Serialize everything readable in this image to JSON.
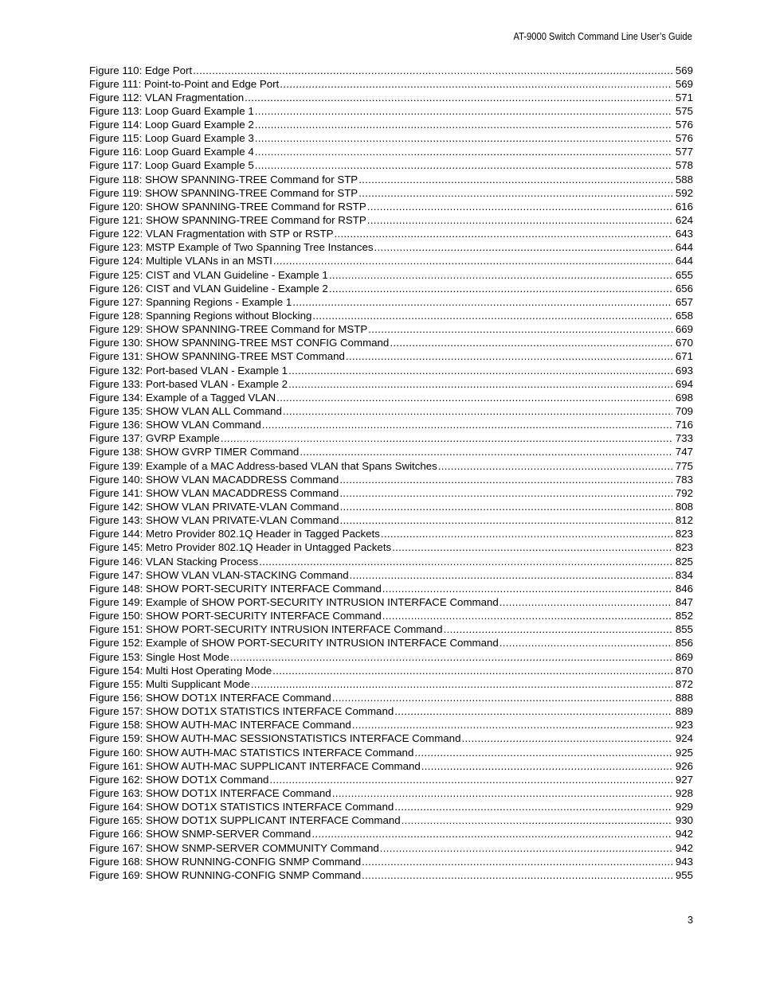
{
  "header": {
    "title": "AT-9000 Switch Command Line User’s Guide"
  },
  "entries": [
    {
      "title": "Figure 110: Edge Port",
      "page": "569"
    },
    {
      "title": "Figure 111: Point-to-Point and Edge Port",
      "page": "569"
    },
    {
      "title": "Figure 112: VLAN Fragmentation",
      "page": "571"
    },
    {
      "title": "Figure 113: Loop Guard Example 1",
      "page": "575"
    },
    {
      "title": "Figure 114: Loop Guard Example 2",
      "page": "576"
    },
    {
      "title": "Figure 115: Loop Guard Example 3",
      "page": "576"
    },
    {
      "title": "Figure 116: Loop Guard Example 4",
      "page": "577"
    },
    {
      "title": "Figure 117: Loop Guard Example 5",
      "page": "578"
    },
    {
      "title": "Figure 118: SHOW SPANNING-TREE Command for STP",
      "page": "588"
    },
    {
      "title": "Figure 119: SHOW SPANNING-TREE Command for STP",
      "page": "592"
    },
    {
      "title": "Figure 120: SHOW SPANNING-TREE Command for RSTP",
      "page": "616"
    },
    {
      "title": "Figure 121: SHOW SPANNING-TREE Command for RSTP",
      "page": "624"
    },
    {
      "title": "Figure 122: VLAN Fragmentation with STP or RSTP",
      "page": "643"
    },
    {
      "title": "Figure 123: MSTP Example of Two Spanning Tree Instances",
      "page": "644"
    },
    {
      "title": "Figure 124: Multiple VLANs in an MSTI",
      "page": "644"
    },
    {
      "title": "Figure 125: CIST and VLAN Guideline - Example 1",
      "page": "655"
    },
    {
      "title": "Figure 126: CIST and VLAN Guideline - Example 2",
      "page": "656"
    },
    {
      "title": "Figure 127: Spanning Regions - Example 1",
      "page": "657"
    },
    {
      "title": "Figure 128: Spanning Regions without Blocking",
      "page": "658"
    },
    {
      "title": "Figure 129: SHOW SPANNING-TREE Command for MSTP",
      "page": "669"
    },
    {
      "title": "Figure 130: SHOW SPANNING-TREE MST CONFIG Command",
      "page": "670"
    },
    {
      "title": "Figure 131: SHOW SPANNING-TREE MST Command",
      "page": "671"
    },
    {
      "title": "Figure 132: Port-based VLAN - Example 1",
      "page": "693"
    },
    {
      "title": "Figure 133: Port-based VLAN - Example 2",
      "page": "694"
    },
    {
      "title": "Figure 134: Example of a Tagged VLAN",
      "page": "698"
    },
    {
      "title": "Figure 135: SHOW VLAN ALL Command",
      "page": "709"
    },
    {
      "title": "Figure 136: SHOW VLAN Command",
      "page": "716"
    },
    {
      "title": "Figure 137: GVRP Example",
      "page": "733"
    },
    {
      "title": "Figure 138: SHOW GVRP TIMER Command",
      "page": "747"
    },
    {
      "title": "Figure 139: Example of a MAC Address-based VLAN that Spans Switches",
      "page": "775"
    },
    {
      "title": "Figure 140: SHOW VLAN MACADDRESS Command",
      "page": "783"
    },
    {
      "title": "Figure 141: SHOW VLAN MACADDRESS Command",
      "page": "792"
    },
    {
      "title": "Figure 142: SHOW VLAN PRIVATE-VLAN Command",
      "page": "808"
    },
    {
      "title": "Figure 143: SHOW VLAN PRIVATE-VLAN Command",
      "page": "812"
    },
    {
      "title": "Figure 144: Metro Provider 802.1Q Header in Tagged Packets",
      "page": "823"
    },
    {
      "title": "Figure 145: Metro Provider 802.1Q Header in Untagged Packets",
      "page": "823"
    },
    {
      "title": "Figure 146: VLAN Stacking Process",
      "page": "825"
    },
    {
      "title": "Figure 147: SHOW VLAN VLAN-STACKING Command",
      "page": "834"
    },
    {
      "title": "Figure 148: SHOW PORT-SECURITY INTERFACE Command",
      "page": "846"
    },
    {
      "title": "Figure 149: Example of SHOW PORT-SECURITY INTRUSION INTERFACE Command",
      "page": "847"
    },
    {
      "title": "Figure 150: SHOW PORT-SECURITY INTERFACE Command",
      "page": "852"
    },
    {
      "title": "Figure 151: SHOW PORT-SECURITY INTRUSION INTERFACE Command",
      "page": "855"
    },
    {
      "title": "Figure 152: Example of SHOW PORT-SECURITY INTRUSION INTERFACE Command",
      "page": "856"
    },
    {
      "title": "Figure 153: Single Host Mode",
      "page": "869"
    },
    {
      "title": "Figure 154: Multi Host Operating Mode",
      "page": "870"
    },
    {
      "title": "Figure 155: Multi Supplicant Mode",
      "page": "872"
    },
    {
      "title": "Figure 156: SHOW DOT1X INTERFACE Command",
      "page": "888"
    },
    {
      "title": "Figure 157: SHOW DOT1X STATISTICS INTERFACE Command",
      "page": "889"
    },
    {
      "title": "Figure 158: SHOW AUTH-MAC INTERFACE Command",
      "page": "923"
    },
    {
      "title": "Figure 159: SHOW AUTH-MAC SESSIONSTATISTICS INTERFACE Command",
      "page": "924"
    },
    {
      "title": "Figure 160: SHOW AUTH-MAC STATISTICS INTERFACE Command",
      "page": "925"
    },
    {
      "title": "Figure 161: SHOW AUTH-MAC SUPPLICANT INTERFACE Command",
      "page": "926"
    },
    {
      "title": "Figure 162: SHOW DOT1X Command",
      "page": "927"
    },
    {
      "title": "Figure 163: SHOW DOT1X INTERFACE Command",
      "page": "928"
    },
    {
      "title": "Figure 164: SHOW DOT1X STATISTICS INTERFACE Command",
      "page": "929"
    },
    {
      "title": "Figure 165: SHOW DOT1X SUPPLICANT INTERFACE Command",
      "page": "930"
    },
    {
      "title": "Figure 166: SHOW SNMP-SERVER Command",
      "page": "942"
    },
    {
      "title": "Figure 167: SHOW SNMP-SERVER COMMUNITY Command",
      "page": "942"
    },
    {
      "title": "Figure 168: SHOW RUNNING-CONFIG SNMP Command",
      "page": "943"
    },
    {
      "title": "Figure 169: SHOW RUNNING-CONFIG SNMP Command",
      "page": "955"
    }
  ],
  "footer": {
    "page_number": "3"
  }
}
